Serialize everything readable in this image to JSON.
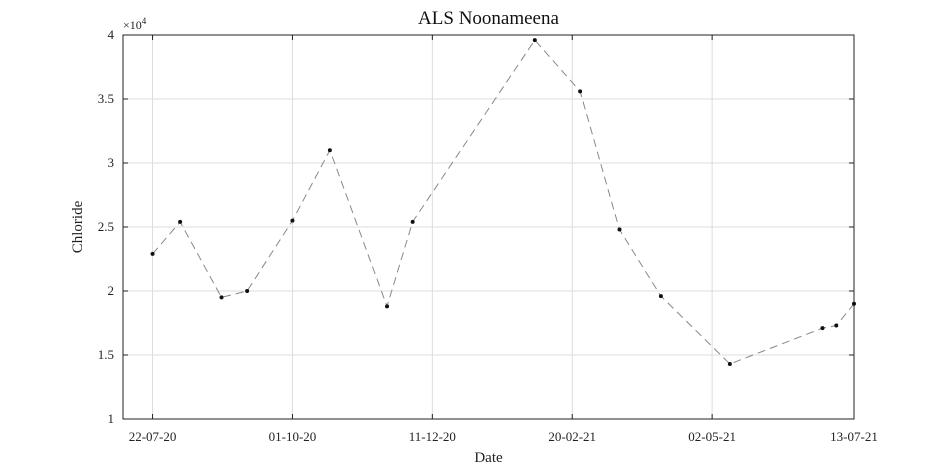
{
  "chart_data": {
    "type": "line",
    "title": "ALS Noonameena",
    "xlabel": "Date",
    "ylabel": "Chloride",
    "y_exponent_label": "×10",
    "y_exponent_power": "4",
    "ylim": [
      10000,
      40000
    ],
    "yticks": [
      10000,
      15000,
      20000,
      25000,
      30000,
      35000,
      40000
    ],
    "ytick_labels": [
      "1",
      "1.5",
      "2",
      "2.5",
      "3",
      "3.5",
      "4"
    ],
    "xlim": [
      "2020-07-07",
      "2021-07-13"
    ],
    "xticks": [
      "2020-07-22",
      "2020-10-01",
      "2020-12-11",
      "2021-02-20",
      "2021-05-02",
      "2021-07-13"
    ],
    "xtick_labels": [
      "22-07-20",
      "01-10-20",
      "11-12-20",
      "20-02-21",
      "02-05-21",
      "13-07-21"
    ],
    "grid": true,
    "line_style": "dashed",
    "line_color": "#888888",
    "marker_color": "#111111",
    "series": [
      {
        "x": [
          "2020-07-22",
          "2020-08-05",
          "2020-08-26",
          "2020-09-08",
          "2020-10-01",
          "2020-10-20",
          "2020-11-18",
          "2020-12-01",
          "2021-02-01",
          "2021-02-24",
          "2021-03-16",
          "2021-04-06",
          "2021-05-11",
          "2021-06-27",
          "2021-07-04",
          "2021-07-13"
        ],
        "y": [
          22900,
          25400,
          19500,
          20000,
          25500,
          31000,
          18800,
          25400,
          39600,
          35600,
          24800,
          19600,
          14300,
          17100,
          17300,
          19000
        ]
      }
    ]
  }
}
